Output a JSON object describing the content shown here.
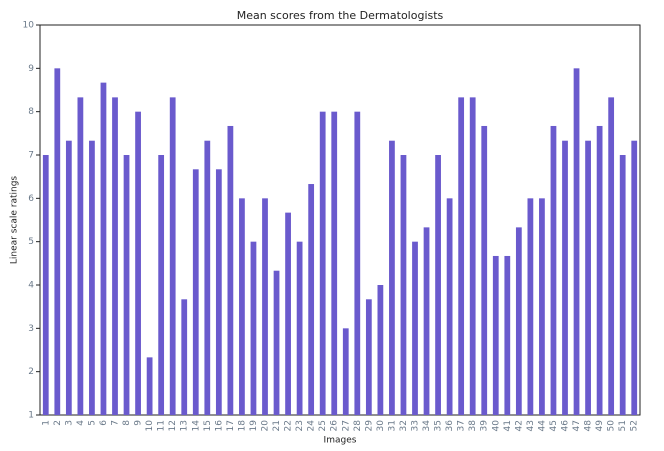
{
  "chart_data": {
    "type": "bar",
    "title": "Mean scores from the Dermatologists",
    "xlabel": "Images",
    "ylabel": "Linear scale ratings",
    "categories": [
      "1",
      "2",
      "3",
      "4",
      "5",
      "6",
      "7",
      "8",
      "9",
      "10",
      "11",
      "12",
      "13",
      "14",
      "15",
      "16",
      "17",
      "18",
      "19",
      "20",
      "21",
      "22",
      "23",
      "24",
      "25",
      "26",
      "27",
      "28",
      "29",
      "30",
      "31",
      "32",
      "33",
      "34",
      "35",
      "36",
      "37",
      "38",
      "39",
      "40",
      "41",
      "42",
      "43",
      "44",
      "45",
      "46",
      "47",
      "48",
      "49",
      "50",
      "51",
      "52"
    ],
    "values": [
      7,
      9,
      7.33,
      8.33,
      7.33,
      8.67,
      8.33,
      7,
      8,
      2.33,
      7,
      8.33,
      3.67,
      6.67,
      7.33,
      6.67,
      7.67,
      6,
      5,
      6,
      4.33,
      5.67,
      5,
      6.33,
      8,
      8,
      3,
      8,
      3.67,
      4,
      7.33,
      7,
      5,
      5.33,
      7,
      6,
      8.33,
      8.33,
      7.67,
      4.67,
      4.67,
      5.33,
      6,
      6,
      7.67,
      7.33,
      9,
      7.33,
      7.67,
      8.33,
      7,
      7.33
    ],
    "color": "#6a5acd",
    "ylim": [
      1,
      10
    ],
    "yticks": [
      1,
      2,
      3,
      4,
      5,
      6,
      7,
      8,
      9,
      10
    ]
  }
}
